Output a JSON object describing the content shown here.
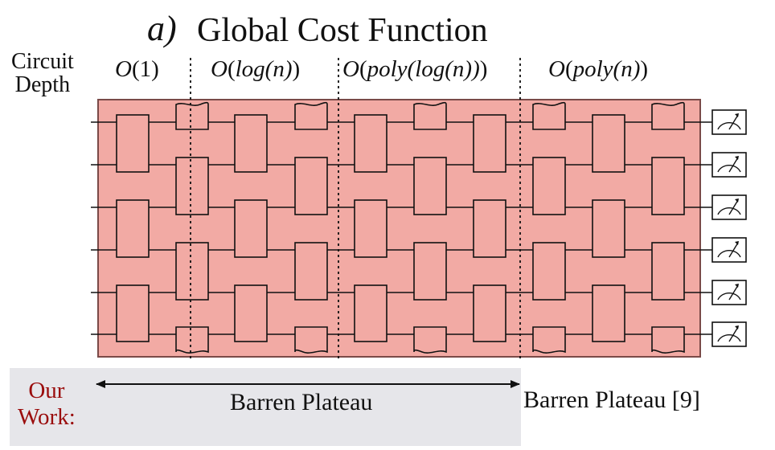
{
  "title": {
    "panel_label": "a)",
    "text": "Global Cost Function"
  },
  "depth_label": {
    "line1": "Circuit",
    "line2": "Depth"
  },
  "depth_regimes": [
    {
      "prefix": "O(",
      "arg": "1",
      "suffix": ")"
    },
    {
      "prefix": "O(",
      "arg": "log(n)",
      "suffix": ")"
    },
    {
      "prefix": "O(",
      "arg": "poly(log(n))",
      "suffix": ")"
    },
    {
      "prefix": "O(",
      "arg": "poly(n)",
      "suffix": ")"
    }
  ],
  "circuit": {
    "qubits": 6,
    "layers": 10,
    "measure_icon": "meter-icon",
    "background_color": "#f2aaa4",
    "border_color": "#7a4a48"
  },
  "our_work": {
    "line1": "Our",
    "line2": "Work:",
    "color": "#9a0d0d",
    "panel_color": "#e6e6ea"
  },
  "results": {
    "ours": "Barren Plateau",
    "reference": "Barren Plateau [9]"
  }
}
